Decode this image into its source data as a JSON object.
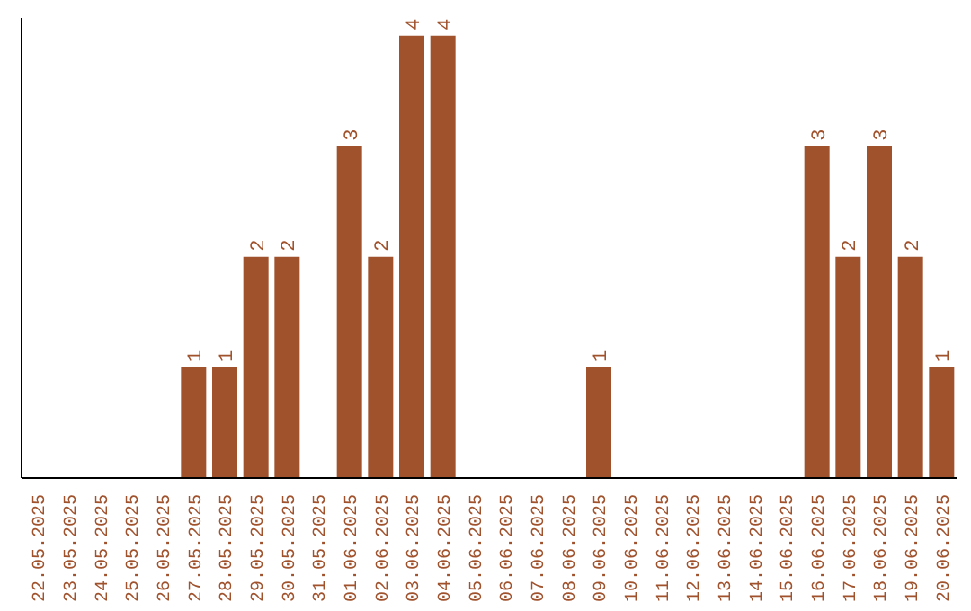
{
  "chart_data": {
    "type": "bar",
    "categories": [
      "22.05.2025",
      "23.05.2025",
      "24.05.2025",
      "25.05.2025",
      "26.05.2025",
      "27.05.2025",
      "28.05.2025",
      "29.05.2025",
      "30.05.2025",
      "31.05.2025",
      "01.06.2025",
      "02.06.2025",
      "03.06.2025",
      "04.06.2025",
      "05.06.2025",
      "06.06.2025",
      "07.06.2025",
      "08.06.2025",
      "09.06.2025",
      "10.06.2025",
      "11.06.2025",
      "12.06.2025",
      "13.06.2025",
      "14.06.2025",
      "15.06.2025",
      "16.06.2025",
      "17.06.2025",
      "18.06.2025",
      "19.06.2025",
      "20.06.2025"
    ],
    "values": [
      0,
      0,
      0,
      0,
      0,
      1,
      1,
      2,
      2,
      0,
      3,
      2,
      4,
      4,
      0,
      0,
      0,
      0,
      1,
      0,
      0,
      0,
      0,
      0,
      0,
      3,
      2,
      3,
      2,
      1
    ],
    "value_labels": [
      null,
      null,
      null,
      null,
      null,
      "1",
      "1",
      "2",
      "2",
      null,
      "3",
      "2",
      "4",
      "4",
      null,
      null,
      null,
      null,
      "1",
      null,
      null,
      null,
      null,
      null,
      null,
      "3",
      "2",
      "3",
      "2",
      "1"
    ],
    "color": "#a0522d",
    "grid": false,
    "legend": false
  }
}
